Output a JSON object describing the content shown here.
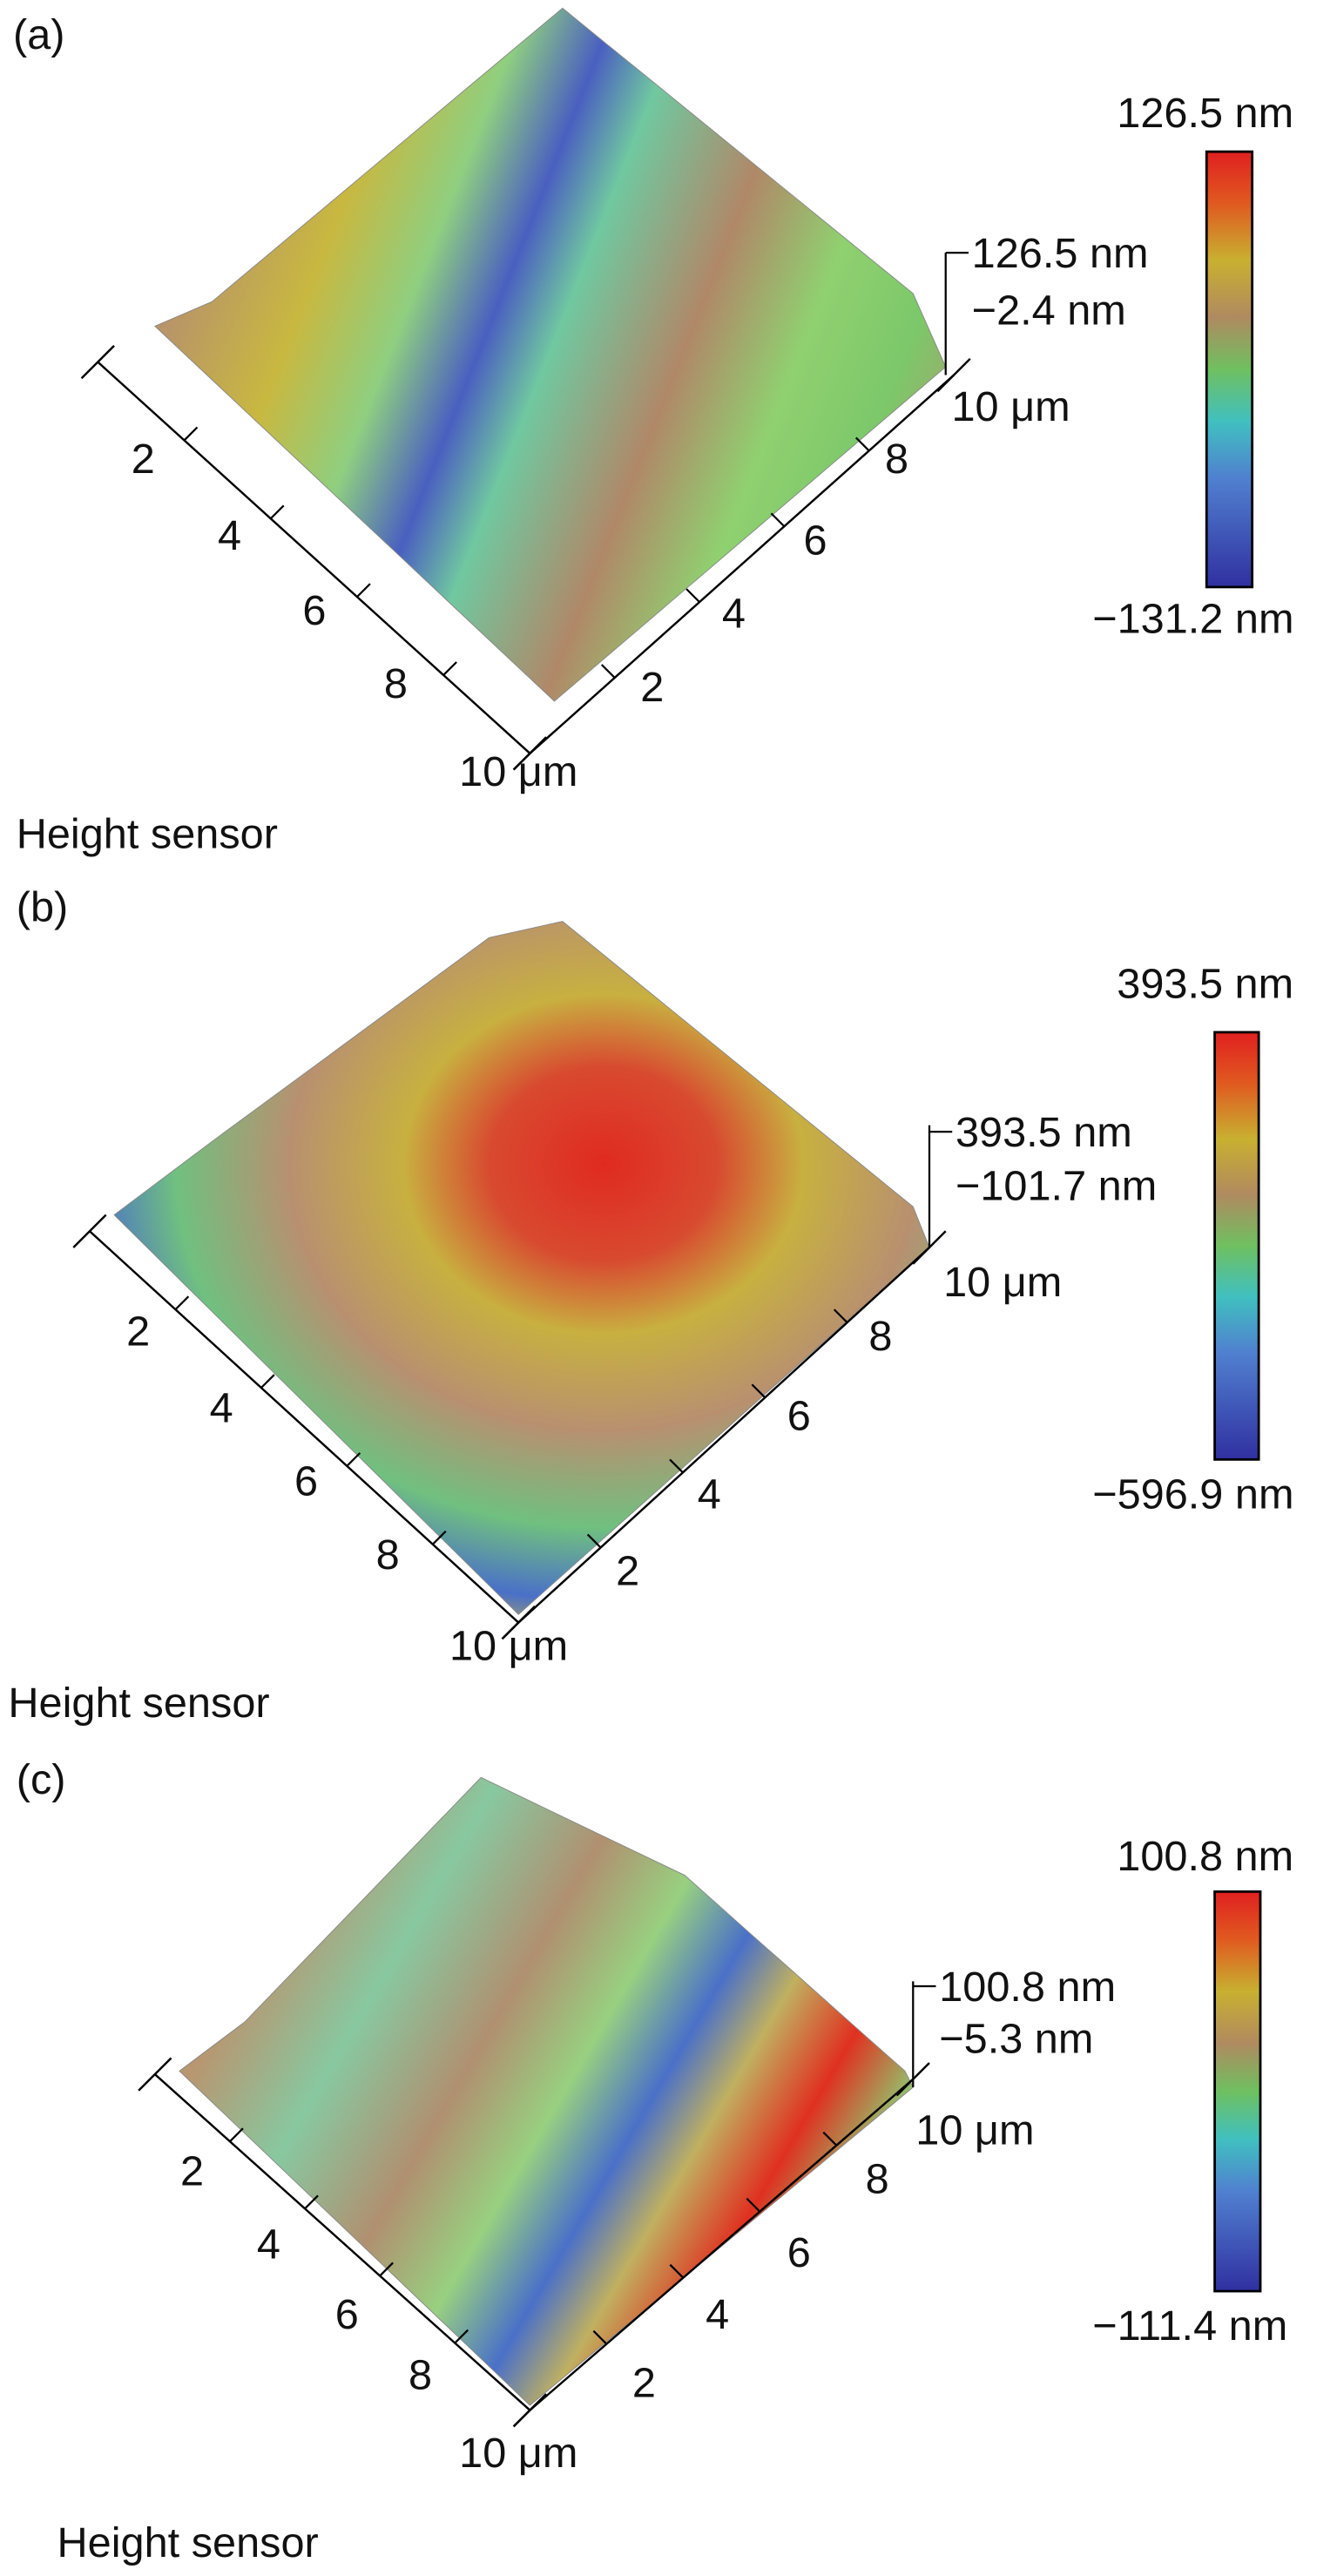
{
  "panels": [
    {
      "label": "(a)",
      "z_top": "126.5 nm",
      "z_mid": "−2.4 nm",
      "colorbar_max": "126.5 nm",
      "colorbar_min": "−131.2 nm",
      "left_ticks": [
        "2",
        "4",
        "6",
        "8",
        "10 μm"
      ],
      "right_ticks": [
        "2",
        "4",
        "6",
        "8",
        "10 μm"
      ],
      "caption": "Height sensor"
    },
    {
      "label": "(b)",
      "z_top": "393.5 nm",
      "z_mid": "−101.7 nm",
      "colorbar_max": "393.5 nm",
      "colorbar_min": "−596.9 nm",
      "left_ticks": [
        "2",
        "4",
        "6",
        "8",
        "10 μm"
      ],
      "right_ticks": [
        "2",
        "4",
        "6",
        "8",
        "10 μm"
      ],
      "caption": "Height sensor"
    },
    {
      "label": "(c)",
      "z_top": "100.8 nm",
      "z_mid": "−5.3 nm",
      "colorbar_max": "100.8 nm",
      "colorbar_min": "−111.4 nm",
      "left_ticks": [
        "2",
        "4",
        "6",
        "8",
        "10 μm"
      ],
      "right_ticks": [
        "2",
        "4",
        "6",
        "8",
        "10 μm"
      ],
      "caption": "Height sensor"
    }
  ]
}
